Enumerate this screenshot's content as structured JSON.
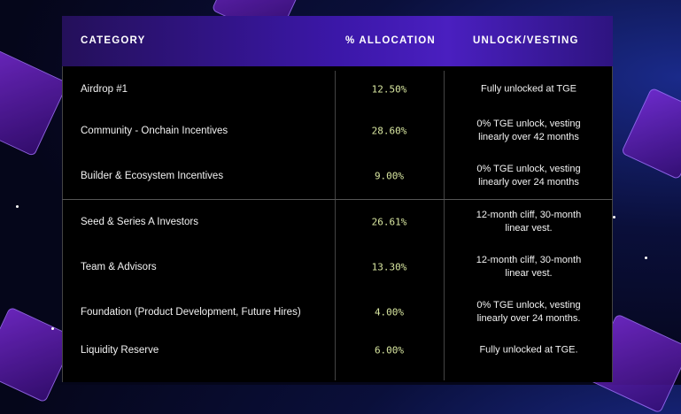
{
  "colors": {
    "accent": "#4a1fc0",
    "percent_text": "#d8e6a0",
    "background": "#05061a"
  },
  "table": {
    "headers": [
      "CATEGORY",
      "% ALLOCATION",
      "UNLOCK/VESTING"
    ],
    "rows": [
      {
        "category": "Airdrop #1",
        "allocation": "12.50%",
        "vesting": "Fully unlocked at TGE"
      },
      {
        "category": "Community - Onchain Incentives",
        "allocation": "28.60%",
        "vesting": "0% TGE unlock, vesting linearly over 42 months"
      },
      {
        "category": "Builder & Ecosystem Incentives",
        "allocation": "9.00%",
        "vesting": "0% TGE unlock, vesting linearly over 24 months"
      },
      {
        "category": "Seed & Series A Investors",
        "allocation": "26.61%",
        "vesting": "12-month cliff, 30-month linear vest."
      },
      {
        "category": "Team & Advisors",
        "allocation": "13.30%",
        "vesting": "12-month cliff, 30-month linear vest."
      },
      {
        "category": "Foundation (Product Development, Future Hires)",
        "allocation": "4.00%",
        "vesting": "0% TGE unlock, vesting linearly over 24 months."
      },
      {
        "category": "Liquidity Reserve",
        "allocation": "6.00%",
        "vesting": "Fully unlocked at TGE."
      }
    ]
  }
}
